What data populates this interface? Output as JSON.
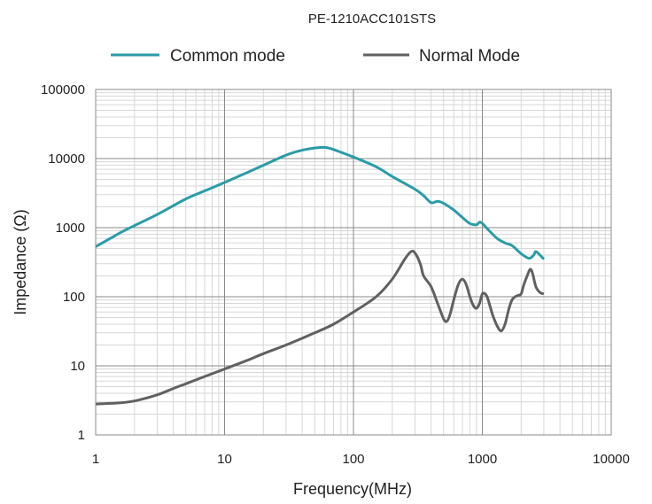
{
  "colors": {
    "common": "#2a9ca8",
    "normal": "#606060"
  },
  "chart_data": {
    "type": "line",
    "title": "PE-1210ACC101STS",
    "xlabel": "Frequency(MHz)",
    "ylabel": "Impedance (Ω)",
    "x_scale": "log",
    "y_scale": "log",
    "xlim": [
      1,
      10000
    ],
    "ylim": [
      1,
      100000
    ],
    "x_ticks": [
      "1",
      "10",
      "100",
      "1000",
      "10000"
    ],
    "y_ticks": [
      "1",
      "10",
      "100",
      "1000",
      "10000",
      "100000"
    ],
    "grid": true,
    "legend_position": "top",
    "series": [
      {
        "name": "Common mode",
        "points": [
          [
            1,
            530
          ],
          [
            1.3,
            700
          ],
          [
            1.6,
            870
          ],
          [
            2,
            1070
          ],
          [
            3,
            1550
          ],
          [
            5,
            2600
          ],
          [
            7,
            3400
          ],
          [
            10,
            4500
          ],
          [
            15,
            6300
          ],
          [
            20,
            8000
          ],
          [
            30,
            11200
          ],
          [
            40,
            13200
          ],
          [
            50,
            14200
          ],
          [
            60,
            14500
          ],
          [
            70,
            13500
          ],
          [
            100,
            10500
          ],
          [
            150,
            7600
          ],
          [
            200,
            5500
          ],
          [
            300,
            3600
          ],
          [
            350,
            2900
          ],
          [
            400,
            2300
          ],
          [
            450,
            2400
          ],
          [
            500,
            2250
          ],
          [
            600,
            1800
          ],
          [
            700,
            1400
          ],
          [
            800,
            1150
          ],
          [
            900,
            1100
          ],
          [
            950,
            1200
          ],
          [
            1000,
            1150
          ],
          [
            1100,
            950
          ],
          [
            1300,
            700
          ],
          [
            1500,
            600
          ],
          [
            1700,
            550
          ],
          [
            2000,
            420
          ],
          [
            2300,
            360
          ],
          [
            2500,
            400
          ],
          [
            2600,
            450
          ],
          [
            2800,
            400
          ],
          [
            3000,
            350
          ]
        ]
      },
      {
        "name": "Normal Mode",
        "points": [
          [
            1,
            2.8
          ],
          [
            1.5,
            2.9
          ],
          [
            2,
            3.1
          ],
          [
            3,
            3.8
          ],
          [
            4,
            4.7
          ],
          [
            5,
            5.5
          ],
          [
            7,
            7
          ],
          [
            10,
            9
          ],
          [
            15,
            12
          ],
          [
            20,
            15
          ],
          [
            30,
            20
          ],
          [
            50,
            30
          ],
          [
            70,
            40
          ],
          [
            100,
            60
          ],
          [
            150,
            100
          ],
          [
            200,
            180
          ],
          [
            250,
            350
          ],
          [
            280,
            450
          ],
          [
            300,
            430
          ],
          [
            330,
            300
          ],
          [
            350,
            200
          ],
          [
            400,
            140
          ],
          [
            450,
            80
          ],
          [
            500,
            48
          ],
          [
            530,
            44
          ],
          [
            560,
            55
          ],
          [
            600,
            90
          ],
          [
            650,
            150
          ],
          [
            700,
            180
          ],
          [
            750,
            150
          ],
          [
            800,
            100
          ],
          [
            850,
            75
          ],
          [
            900,
            68
          ],
          [
            950,
            80
          ],
          [
            1000,
            110
          ],
          [
            1050,
            110
          ],
          [
            1100,
            95
          ],
          [
            1200,
            55
          ],
          [
            1300,
            38
          ],
          [
            1400,
            32
          ],
          [
            1500,
            40
          ],
          [
            1600,
            65
          ],
          [
            1700,
            90
          ],
          [
            1800,
            100
          ],
          [
            1900,
            105
          ],
          [
            2000,
            110
          ],
          [
            2100,
            150
          ],
          [
            2250,
            210
          ],
          [
            2350,
            250
          ],
          [
            2450,
            220
          ],
          [
            2600,
            140
          ],
          [
            2800,
            115
          ],
          [
            3000,
            110
          ]
        ]
      }
    ]
  }
}
